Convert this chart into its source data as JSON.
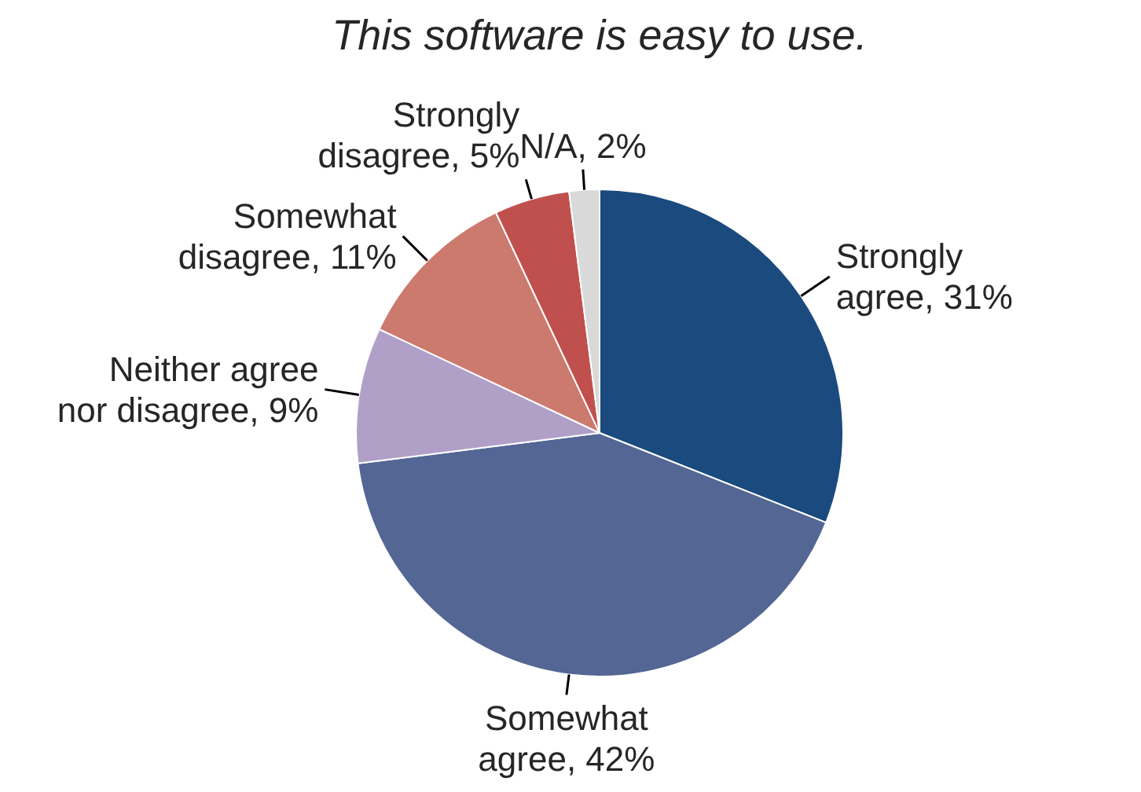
{
  "chart_data": {
    "type": "pie",
    "title": "This software is easy to use.",
    "categories": [
      "Strongly agree",
      "Somewhat agree",
      "Neither agree nor disagree",
      "Somewhat disagree",
      "Strongly disagree",
      "N/A"
    ],
    "values": [
      31,
      42,
      9,
      11,
      5,
      2
    ],
    "value_labels": [
      "31%",
      "42%",
      "9%",
      "11%",
      "5%",
      "2%"
    ],
    "colors": [
      "#1a4a7e",
      "#536694",
      "#b0a0c8",
      "#cc796e",
      "#c0504d",
      "#d9d9d9"
    ]
  }
}
